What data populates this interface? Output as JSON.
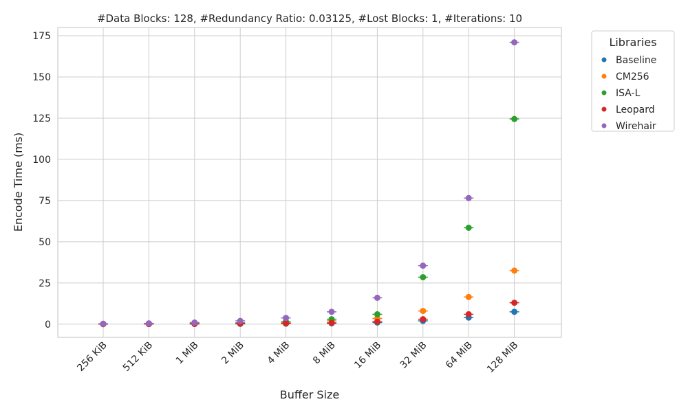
{
  "chart_data": {
    "type": "scatter",
    "title": "#Data Blocks: 128, #Redundancy Ratio: 0.03125, #Lost Blocks: 1, #Iterations: 10",
    "xlabel": "Buffer Size",
    "ylabel": "Encode Time (ms)",
    "categories": [
      "256 KiB",
      "512 KiB",
      "1 MiB",
      "2 MiB",
      "4 MiB",
      "8 MiB",
      "16 MiB",
      "32 MiB",
      "64 MiB",
      "128 MiB"
    ],
    "ylim": [
      -8,
      180
    ],
    "yticks": [
      0,
      25,
      50,
      75,
      100,
      125,
      150,
      175
    ],
    "grid": true,
    "legend": {
      "title": "Libraries",
      "placement": "outside-top-right"
    },
    "series": [
      {
        "name": "Baseline",
        "color": "#1f77b4",
        "values": [
          0.05,
          0.1,
          0.15,
          0.2,
          0.3,
          0.5,
          1.0,
          2.0,
          4.0,
          7.5
        ]
      },
      {
        "name": "CM256",
        "color": "#ff7f0e",
        "values": [
          0.1,
          0.2,
          0.3,
          0.5,
          1.0,
          2.0,
          3.5,
          8.0,
          16.5,
          32.5
        ]
      },
      {
        "name": "ISA-L",
        "color": "#2ca02c",
        "values": [
          0.1,
          0.2,
          0.4,
          0.8,
          1.5,
          3.0,
          6.0,
          28.5,
          58.5,
          124.5
        ]
      },
      {
        "name": "Leopard",
        "color": "#d62728",
        "values": [
          0.05,
          0.1,
          0.15,
          0.3,
          0.5,
          0.8,
          1.5,
          3.0,
          6.0,
          13.0
        ]
      },
      {
        "name": "Wirehair",
        "color": "#9467bd",
        "values": [
          0.3,
          0.5,
          1.0,
          2.0,
          3.8,
          7.5,
          16.0,
          35.5,
          76.5,
          171.0
        ]
      }
    ]
  }
}
